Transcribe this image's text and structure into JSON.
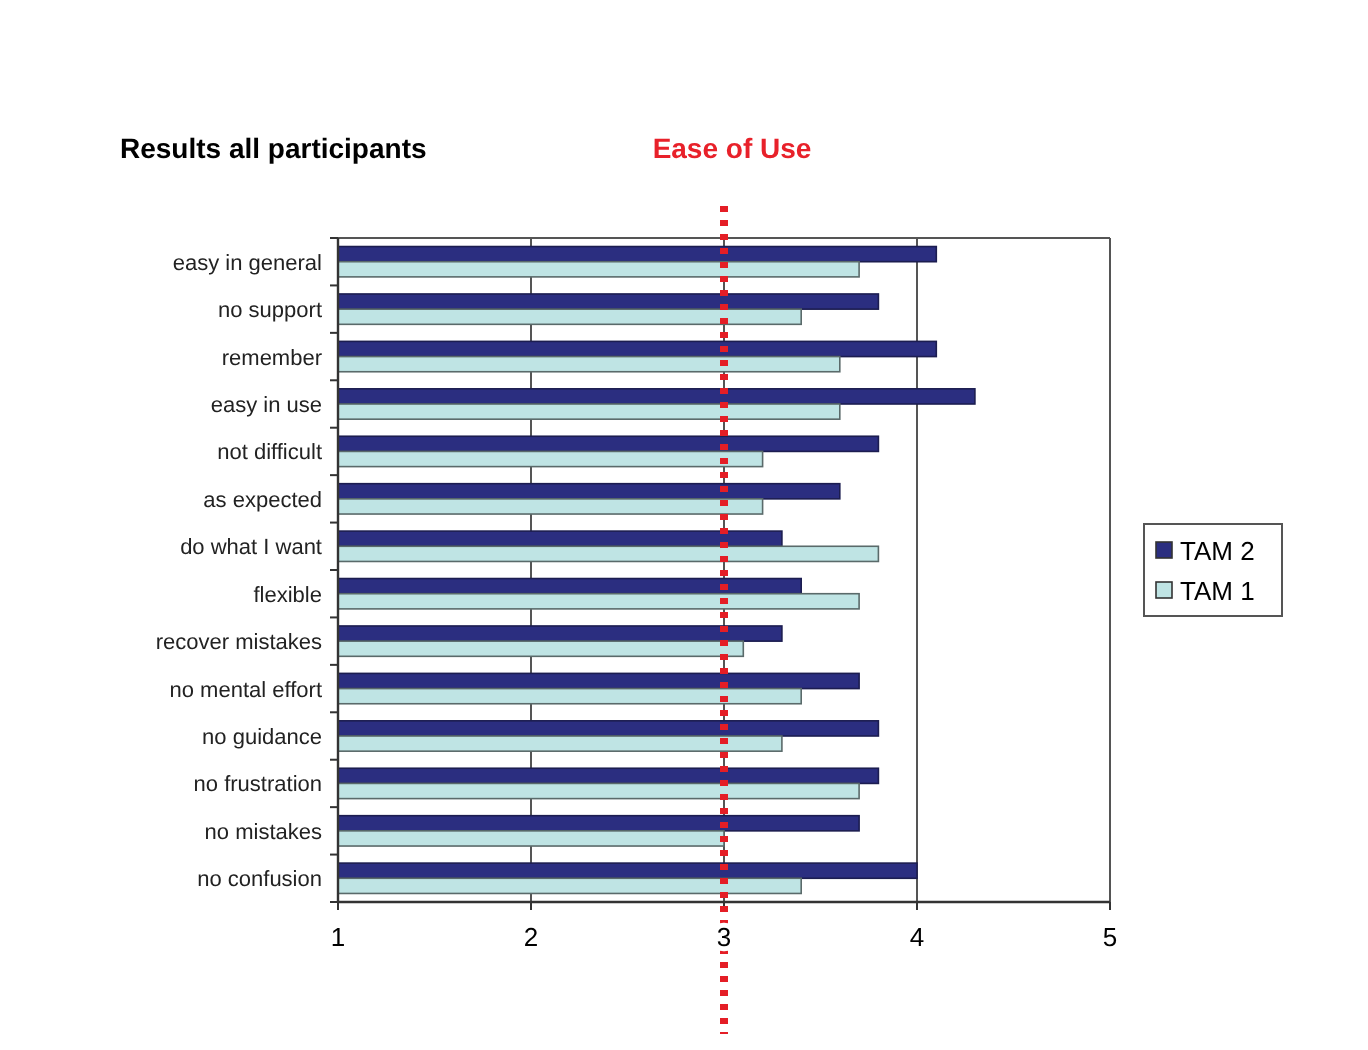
{
  "chart_data": {
    "type": "bar",
    "orientation": "horizontal",
    "title": "Results all participants",
    "subtitle": "Ease of Use",
    "categories": [
      "easy in general",
      "no support",
      "remember",
      "easy in use",
      "not difficult",
      "as expected",
      "do what I want",
      "flexible",
      "recover mistakes",
      "no mental effort",
      "no guidance",
      "no frustration",
      "no mistakes",
      "no confusion"
    ],
    "series": [
      {
        "name": "TAM 2",
        "color": "#2b2e80",
        "values": [
          4.1,
          3.8,
          4.1,
          4.3,
          3.8,
          3.6,
          3.3,
          3.4,
          3.3,
          3.7,
          3.8,
          3.8,
          3.7,
          4.0
        ]
      },
      {
        "name": "TAM 1",
        "color": "#bfe4e4",
        "values": [
          3.7,
          3.4,
          3.6,
          3.6,
          3.2,
          3.2,
          3.8,
          3.7,
          3.1,
          3.4,
          3.3,
          3.7,
          3.0,
          3.4
        ]
      }
    ],
    "xlim": [
      1,
      5
    ],
    "xticks": [
      1,
      2,
      3,
      4,
      5
    ],
    "grid": "x",
    "legend": "right",
    "ref_lines": [
      {
        "axis": "x",
        "value": 3,
        "color": "#e41e26",
        "line_style": "dotted"
      }
    ]
  }
}
